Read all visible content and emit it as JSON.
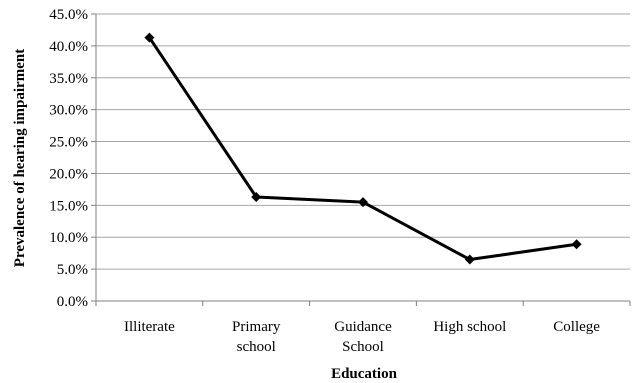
{
  "chart_data": {
    "type": "line",
    "title": "",
    "xlabel": "Education",
    "ylabel": "Prevalence of hearing impairment",
    "categories": [
      [
        "Illiterate"
      ],
      [
        "Primary",
        "school"
      ],
      [
        "Guidance",
        "School"
      ],
      [
        "High school"
      ],
      [
        "College"
      ]
    ],
    "values": [
      41.3,
      16.3,
      15.5,
      6.5,
      8.9
    ],
    "yticks": [
      "0.0%",
      "5.0%",
      "10.0%",
      "15.0%",
      "20.0%",
      "25.0%",
      "30.0%",
      "35.0%",
      "40.0%",
      "45.0%"
    ],
    "ylim": [
      0,
      45
    ],
    "ystep": 5,
    "grid": true,
    "legend": "none",
    "colors": {
      "line": "#000000",
      "grid": "#a6a6a6",
      "axis": "#808080"
    }
  }
}
